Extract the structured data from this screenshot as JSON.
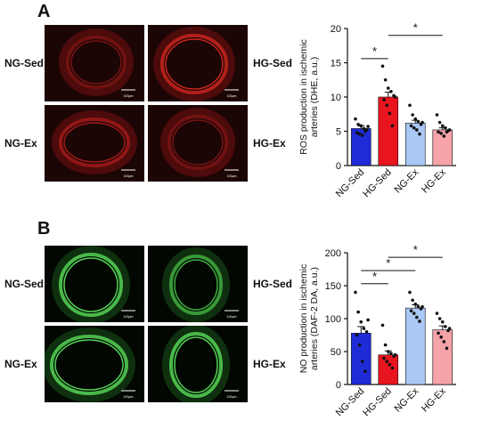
{
  "panels": [
    {
      "letter": "A",
      "stain": "red",
      "scale_bar_label": "100μm",
      "image_labels": {
        "top_left": "NG-Sed",
        "top_right": "HG-Sed",
        "bottom_left": "NG-Ex",
        "bottom_right": "HG-Ex"
      }
    },
    {
      "letter": "B",
      "stain": "green",
      "scale_bar_label": "100μm",
      "image_labels": {
        "top_left": "NG-Sed",
        "top_right": "HG-Sed",
        "bottom_left": "NG-Ex",
        "bottom_right": "HG-Ex"
      }
    }
  ],
  "colors": {
    "NG-Sed": "#1f2bd6",
    "HG-Sed": "#e8141e",
    "NG-Ex": "#a9c8f5",
    "HG-Ex": "#f4a3a8"
  },
  "chart_data": [
    {
      "type": "bar",
      "categories": [
        "NG-Sed",
        "HG-Sed",
        "NG-Ex",
        "HG-Ex"
      ],
      "values": [
        5.4,
        10.0,
        6.2,
        5.2
      ],
      "errors": [
        0.4,
        0.7,
        0.4,
        0.3
      ],
      "points": [
        [
          6.8,
          6.0,
          5.8,
          5.4,
          5.2,
          4.8,
          4.6,
          4.4,
          5.0,
          5.7
        ],
        [
          14.5,
          12.5,
          11.3,
          10.8,
          10.2,
          9.6,
          8.8,
          7.6,
          5.8,
          10.0
        ],
        [
          8.8,
          7.4,
          6.8,
          6.4,
          6.0,
          5.8,
          5.5,
          5.2,
          4.6,
          6.3
        ],
        [
          7.4,
          6.3,
          5.8,
          5.5,
          5.1,
          4.9,
          4.7,
          4.3,
          4.9,
          5.2
        ]
      ],
      "ylabel": "ROS production in ischemic arteries (DHE, a.u.)",
      "ylim": [
        0,
        20
      ],
      "yticks": [
        0,
        5,
        10,
        15,
        20
      ],
      "significance": [
        {
          "from": "NG-Sed",
          "to": "HG-Sed",
          "y": 15.6,
          "label": "*"
        },
        {
          "from": "HG-Sed",
          "to": "HG-Ex",
          "y": 19.0,
          "label": "*"
        }
      ]
    },
    {
      "type": "bar",
      "categories": [
        "NG-Sed",
        "HG-Sed",
        "NG-Ex",
        "HG-Ex"
      ],
      "values": [
        78,
        45,
        116,
        83
      ],
      "errors": [
        10,
        6,
        5,
        6
      ],
      "points": [
        [
          140,
          110,
          95,
          85,
          80,
          75,
          60,
          35,
          20,
          98
        ],
        [
          90,
          60,
          50,
          47,
          43,
          40,
          35,
          30,
          25,
          45
        ],
        [
          140,
          128,
          122,
          118,
          115,
          112,
          108,
          102,
          96,
          118
        ],
        [
          108,
          100,
          95,
          88,
          82,
          78,
          72,
          65,
          55,
          85
        ]
      ],
      "ylabel": "NO production in ischemic arteries (DAF-2 DA, a.u.)",
      "ylim": [
        0,
        200
      ],
      "yticks": [
        0,
        50,
        100,
        150,
        200
      ],
      "significance": [
        {
          "from": "NG-Sed",
          "to": "HG-Sed",
          "y": 153,
          "label": "*"
        },
        {
          "from": "NG-Sed",
          "to": "NG-Ex",
          "y": 173,
          "label": "*"
        },
        {
          "from": "HG-Sed",
          "to": "HG-Ex",
          "y": 193,
          "label": "*"
        }
      ]
    }
  ]
}
